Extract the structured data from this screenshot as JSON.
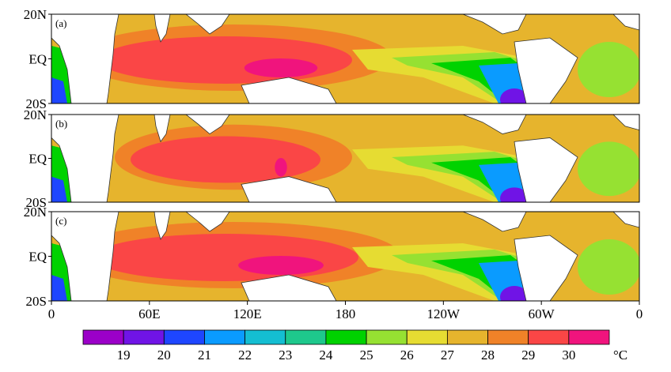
{
  "panels": [
    {
      "label": "(a)"
    },
    {
      "label": "(b)"
    },
    {
      "label": "(c)"
    }
  ],
  "y_labels": [
    "20N",
    "EQ",
    "20S"
  ],
  "x_labels": [
    "0",
    "60E",
    "120E",
    "180",
    "120W",
    "60W",
    "0"
  ],
  "colorbar": {
    "ticks": [
      19,
      20,
      21,
      22,
      23,
      24,
      25,
      26,
      27,
      28,
      29,
      30
    ],
    "unit": "°C",
    "colors": [
      "#9b00c8",
      "#7014e6",
      "#1e46ff",
      "#0a9bff",
      "#14bed2",
      "#1ec88c",
      "#00d200",
      "#96e132",
      "#e6dc32",
      "#e6b42d",
      "#f08228",
      "#fa4646",
      "#f0147d"
    ]
  }
}
